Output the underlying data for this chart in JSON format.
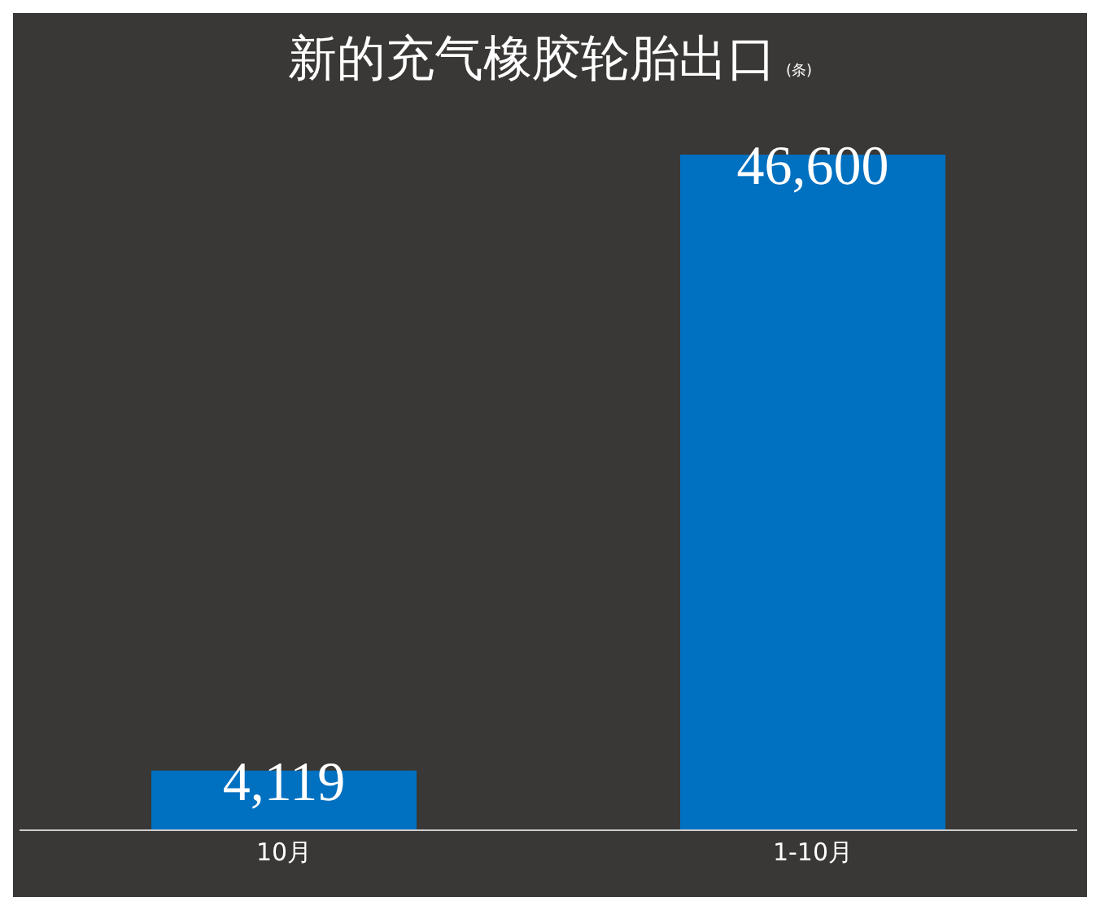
{
  "chart_data": {
    "type": "bar",
    "title": "新的充气橡胶轮胎出口",
    "subtitle": "(条)",
    "categories": [
      "10月",
      "1-10月"
    ],
    "values": [
      4119,
      46600
    ],
    "value_labels": [
      "4,119",
      "46,600"
    ],
    "color": "#0070c0",
    "ylim": [
      0,
      46600
    ],
    "tick_labels": "x",
    "grid": false,
    "legend": false
  }
}
